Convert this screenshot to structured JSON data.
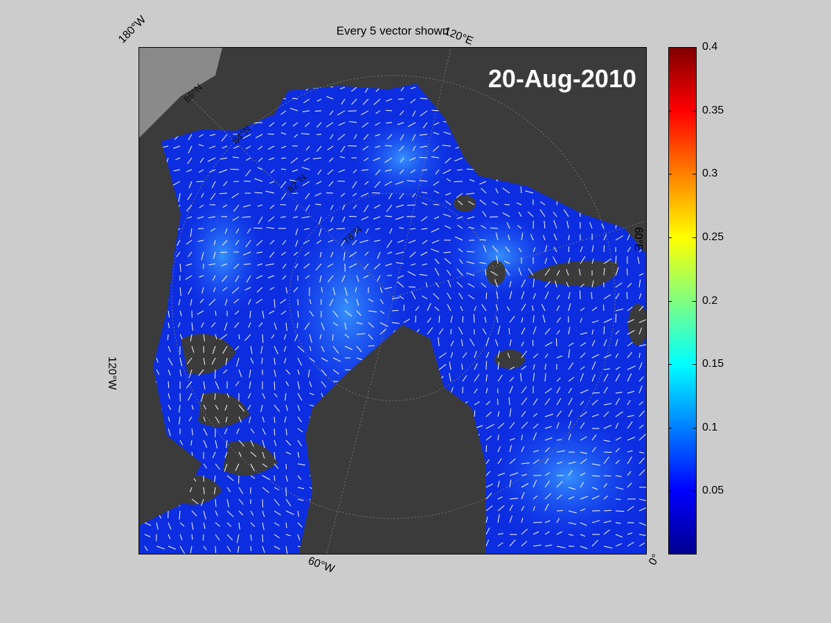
{
  "title": "Every 5 vector shown",
  "date": "20-Aug-2010",
  "map_labels": {
    "lon_180w": "180°W",
    "lon_120e": "120°E",
    "lon_60e": "60°E",
    "lon_120w": "120°W",
    "lon_60w": "60°W",
    "lon_0": "0°",
    "lat_86n": "86°N",
    "lat_78n": "78°N",
    "lat_82n": "82°N",
    "lat_84n": "84°N"
  },
  "colorbar": {
    "min": 0,
    "max": 0.4,
    "ticks": [
      "0.05",
      "0.1",
      "0.15",
      "0.2",
      "0.25",
      "0.3",
      "0.35",
      "0.4"
    ],
    "colormap": "jet"
  },
  "colors": {
    "background": "#cccccc",
    "land": "#3b3b3b",
    "grey_land": "#8a8a8a",
    "ice_speed_low": "#0a1fd6",
    "ice_speed_mid": "#1a6cff",
    "vectors": "#ffffff"
  }
}
